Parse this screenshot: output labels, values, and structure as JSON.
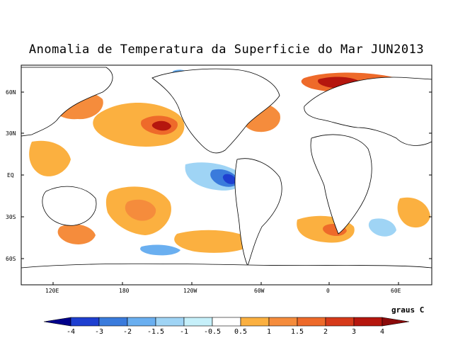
{
  "title": "Anomalia de Temperatura da Superficie do Mar JUN2013",
  "units": "graus C",
  "map": {
    "lat_labels": [
      "60N",
      "30N",
      "EQ",
      "30S",
      "60S"
    ],
    "lon_labels": [
      "120E",
      "180",
      "120W",
      "60W",
      "0",
      "60E"
    ]
  },
  "colorbar": {
    "labels": [
      "-4",
      "-3",
      "-2",
      "-1.5",
      "-1",
      "-0.5",
      "0.5",
      "1",
      "1.5",
      "2",
      "3",
      "4"
    ],
    "colors": [
      "#00008b",
      "#1e3fd0",
      "#3a7bdc",
      "#6aaff0",
      "#9fd4f5",
      "#c6f0fa",
      "#ffffff",
      "#fbb040",
      "#f58c3c",
      "#ee6a2a",
      "#d63a1a",
      "#b5160e",
      "#8b0a0a"
    ]
  }
}
